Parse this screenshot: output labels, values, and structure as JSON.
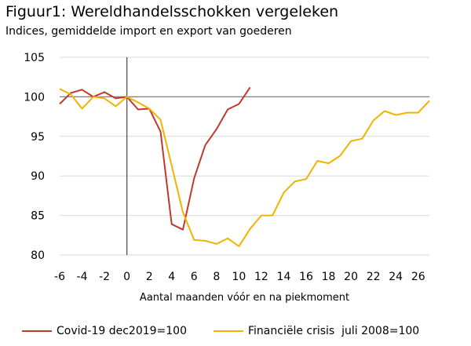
{
  "title": "Figuur1: Wereldhandelsschokken vergeleken",
  "subtitle": "Indices, gemiddelde import en export van goederen",
  "chart_data": {
    "type": "line",
    "xlabel": "Aantal maanden vóór en na piekmoment",
    "ylabel": "",
    "xlim": [
      -6,
      27
    ],
    "ylim": [
      80,
      105
    ],
    "xticks": [
      -6,
      -4,
      -2,
      0,
      2,
      4,
      6,
      8,
      10,
      12,
      14,
      16,
      18,
      20,
      22,
      24,
      26
    ],
    "yticks": [
      80,
      85,
      90,
      95,
      100,
      105
    ],
    "grid": "horizontal",
    "reference_line_y": 100,
    "vertical_line_x": 0,
    "legend_position": "bottom",
    "series": [
      {
        "name": "Covid-19 dec2019=100",
        "color": "#C0392B",
        "x": [
          -6,
          -5,
          -4,
          -3,
          -2,
          -1,
          0,
          1,
          2,
          3,
          4,
          5,
          6,
          7,
          8,
          9,
          10,
          11
        ],
        "values": [
          99.1,
          100.5,
          100.9,
          100.0,
          100.6,
          99.8,
          100.0,
          98.4,
          98.5,
          95.6,
          83.9,
          83.2,
          89.7,
          93.9,
          95.9,
          98.4,
          99.1,
          101.2
        ]
      },
      {
        "name": "Financiële crisis  juli 2008=100",
        "color": "#F0B400",
        "x": [
          -6,
          -5,
          -4,
          -3,
          -2,
          -1,
          0,
          1,
          2,
          3,
          4,
          5,
          6,
          7,
          8,
          9,
          10,
          11,
          12,
          13,
          14,
          15,
          16,
          17,
          18,
          19,
          20,
          21,
          22,
          23,
          24,
          25,
          26,
          27
        ],
        "values": [
          101.0,
          100.3,
          98.5,
          100.0,
          99.8,
          98.8,
          100.0,
          99.3,
          98.5,
          97.1,
          91.3,
          85.4,
          81.9,
          81.8,
          81.4,
          82.1,
          81.1,
          83.3,
          85.0,
          85.0,
          87.9,
          89.3,
          89.6,
          91.9,
          91.6,
          92.5,
          94.4,
          94.7,
          97.0,
          98.2,
          97.7,
          98.0,
          98.0,
          99.5
        ]
      }
    ]
  }
}
